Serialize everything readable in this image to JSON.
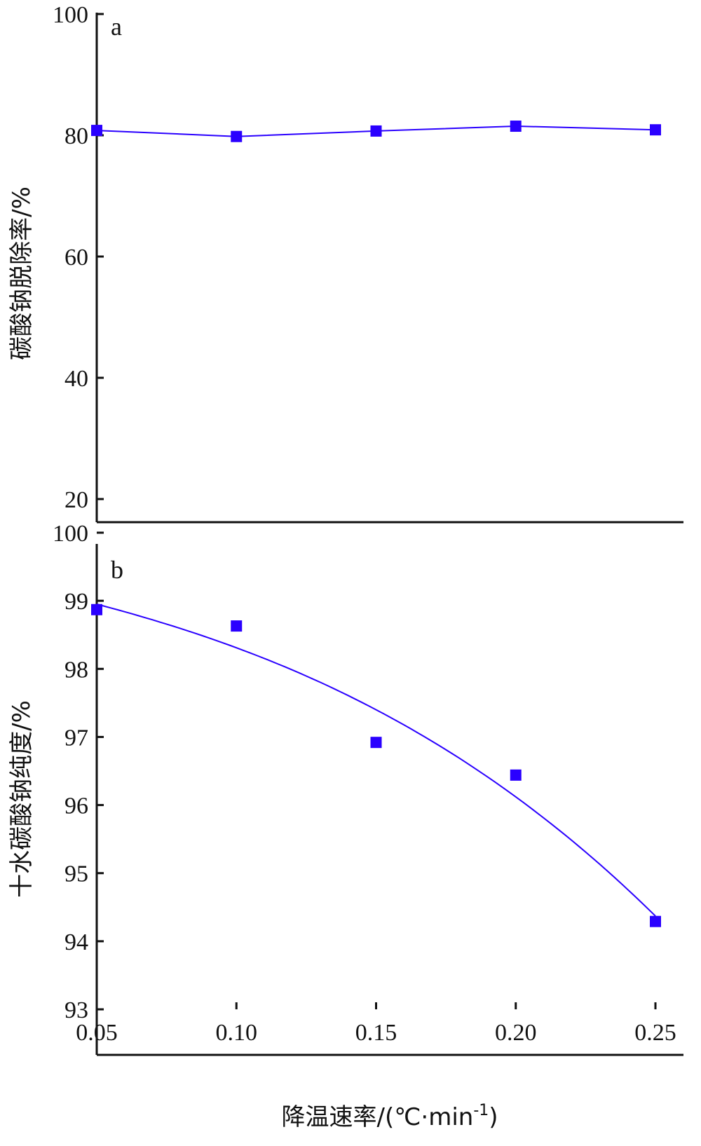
{
  "chart_data": [
    {
      "type": "line",
      "panel_label": "a",
      "x": [
        0.05,
        0.1,
        0.15,
        0.2,
        0.25
      ],
      "series": [
        {
          "values": [
            80.8,
            79.8,
            80.7,
            81.5,
            80.9
          ],
          "color": "#2a00ff"
        }
      ],
      "ylabel": "碳酸钠脱除率/%",
      "ylim": [
        20,
        100
      ],
      "yticks": [
        "100",
        "80",
        "60",
        "40",
        "20"
      ],
      "marker": "square",
      "grid": false
    },
    {
      "type": "line",
      "panel_label": "b",
      "x": [
        0.05,
        0.1,
        0.15,
        0.2,
        0.25
      ],
      "series": [
        {
          "values": [
            98.87,
            98.63,
            96.92,
            96.44,
            94.29
          ],
          "color": "#2a00ff",
          "line": "smooth fit"
        }
      ],
      "ylabel": "十水碳酸钠纯度/%",
      "xlabel": "降温速率/(℃·min",
      "xlabel_sup": "-1",
      "xlabel_end": ")",
      "ylim": [
        93,
        100
      ],
      "yticks": [
        "100",
        "99",
        "98",
        "97",
        "96",
        "95",
        "94",
        "93"
      ],
      "xticks": [
        "0.05",
        "0.10",
        "0.15",
        "0.20",
        "0.25"
      ],
      "marker": "square",
      "grid": false
    }
  ]
}
